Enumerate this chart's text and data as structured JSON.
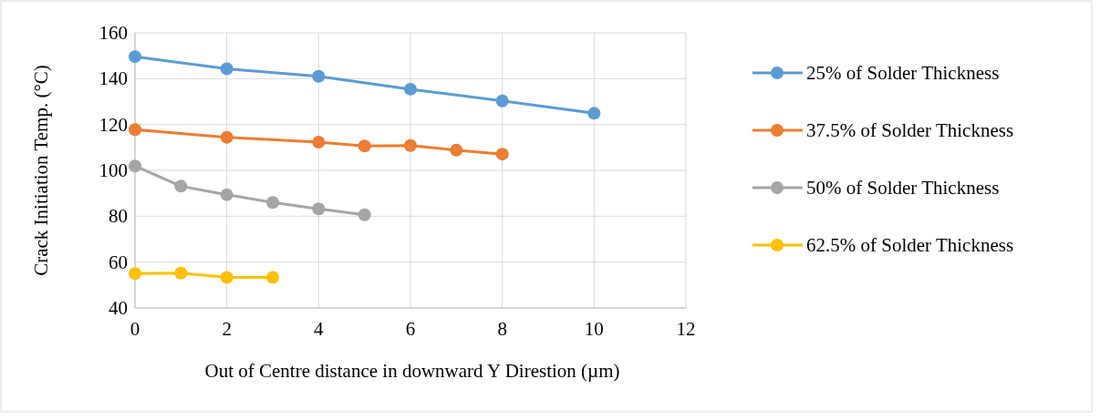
{
  "chart_data": {
    "type": "line",
    "xlabel": "Out of Centre distance in downward Y Direstion (µm)",
    "ylabel": "Crack Initiation Temp.  (°C)",
    "xlim": [
      0,
      12
    ],
    "xticks": [
      0,
      2,
      4,
      6,
      8,
      10,
      12
    ],
    "ylim": [
      40,
      160
    ],
    "yticks": [
      40,
      60,
      80,
      100,
      120,
      140,
      160
    ],
    "grid": true,
    "legend": "right",
    "marker": "circle",
    "line_style": "solid",
    "series": [
      {
        "name": "25% of Solder Thickness",
        "color": "#5b9bd5",
        "x": [
          0,
          2,
          4,
          6,
          8,
          10
        ],
        "values": [
          149.6,
          144.3,
          141,
          135.4,
          130.3,
          124.9
        ]
      },
      {
        "name": "37.5% of Solder Thickness",
        "color": "#ed7d31",
        "x": [
          0,
          2,
          4,
          5,
          6,
          7,
          8
        ],
        "values": [
          117.8,
          114.4,
          112.3,
          110.6,
          110.8,
          108.8,
          107.1
        ]
      },
      {
        "name": "50% of Solder Thickness",
        "color": "#a5a5a5",
        "x": [
          0,
          1,
          2,
          3,
          4,
          5
        ],
        "values": [
          101.9,
          93.1,
          89.4,
          86,
          83.2,
          80.6
        ]
      },
      {
        "name": "62.5% of Solder Thickness",
        "color": "#ffc000",
        "x": [
          0,
          1,
          2,
          3
        ],
        "values": [
          55,
          55.2,
          53.3,
          53.3
        ]
      }
    ]
  }
}
